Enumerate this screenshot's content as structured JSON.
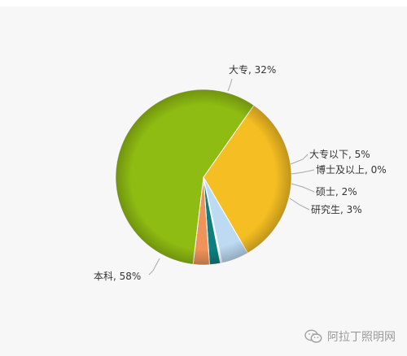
{
  "chart_data": {
    "type": "pie",
    "title": "",
    "legend": "none",
    "slices": [
      {
        "label": "大专",
        "value": 32,
        "display": "大专, 32%",
        "color": "#f5be22"
      },
      {
        "label": "大专以下",
        "value": 5,
        "display": "大专以下, 5%",
        "color": "#bcdaf2"
      },
      {
        "label": "博士及以上",
        "value": 0.3,
        "display": "博士及以上, 0%",
        "color": "#ffffff"
      },
      {
        "label": "硕士",
        "value": 2,
        "display": "硕士, 2%",
        "color": "#0e7f80"
      },
      {
        "label": "研究生",
        "value": 3,
        "display": "研究生, 3%",
        "color": "#ef935a"
      },
      {
        "label": "本科",
        "value": 58,
        "display": "本科, 58%",
        "color": "#8fbc12"
      }
    ]
  },
  "watermark": {
    "text": "阿拉丁照明网",
    "icon": "wechat-icon"
  }
}
